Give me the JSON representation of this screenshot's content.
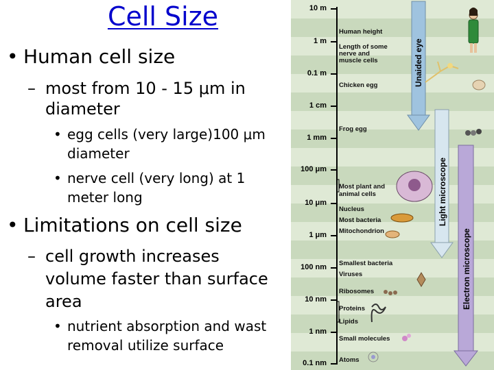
{
  "title": "Cell Size",
  "bullets": {
    "b1": "Human cell size",
    "b1a_line1": "most from 10 - 15 μm in",
    "b1a_line2": "diameter",
    "b1a1_line1": "egg cells (very large)100 μm",
    "b1a1_line2": "diameter",
    "b1a2_line1": "nerve cell (very long) at 1",
    "b1a2_line2": "meter long",
    "b2": "Limitations on cell size",
    "b2a_line1": "cell growth increases",
    "b2a_line2": "volume faster than surface",
    "b2a_line3": "area",
    "b2a1_line1": "nutrient absorption and wast",
    "b2a1_line2": "removal utilize surface"
  },
  "figure": {
    "scale_labels": [
      "10 m",
      "1 m",
      "0.1 m",
      "1 cm",
      "1 mm",
      "100 μm",
      "10 μm",
      "1 μm",
      "100 nm",
      "10 nm",
      "1 nm",
      "0.1 nm"
    ],
    "items": {
      "human_height": "Human height",
      "nerve_l1": "Length of some",
      "nerve_l2": "nerve and",
      "nerve_l3": "muscle cells",
      "chicken_egg": "Chicken egg",
      "frog_egg": "Frog egg",
      "plant_l1": "Most plant and",
      "plant_l2": "animal cells",
      "nucleus": "Nucleus",
      "bacteria": "Most bacteria",
      "mito": "Mitochondrion",
      "small_bact": "Smallest bacteria",
      "viruses": "Viruses",
      "ribosomes": "Ribosomes",
      "proteins": "Proteins",
      "lipids": "Lipids",
      "small_mol": "Small molecules",
      "atoms": "Atoms"
    },
    "ranges": {
      "eye": "Unaided eye",
      "light": "Light microscope",
      "electron": "Electron microscope"
    },
    "colors": {
      "eye_arrow": "#9fc3df",
      "light_arrow": "#d7e6ef",
      "electron_arrow": "#b9a8d8",
      "band_light": "#dfe9d5",
      "band_dark": "#c9d9bd",
      "title": "#0000cc"
    }
  }
}
